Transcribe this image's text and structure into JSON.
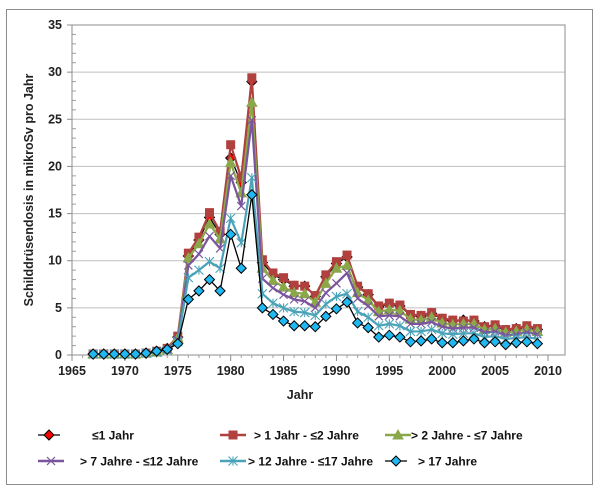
{
  "chart_data": {
    "type": "line",
    "title": "",
    "xlabel": "Jahr",
    "ylabel": "Schilddrüsendosis  in mikroSv pro Jahr",
    "xlim": [
      1965,
      2010
    ],
    "ylim": [
      0,
      35
    ],
    "x_ticks": [
      1965,
      1970,
      1975,
      1980,
      1985,
      1990,
      1995,
      2000,
      2005,
      2010
    ],
    "y_ticks": [
      0,
      5,
      10,
      15,
      20,
      25,
      30,
      35
    ],
    "grid": "horizontal",
    "legend_position": "bottom",
    "x": [
      1967,
      1968,
      1969,
      1970,
      1971,
      1972,
      1973,
      1974,
      1975,
      1976,
      1977,
      1978,
      1979,
      1980,
      1981,
      1982,
      1983,
      1984,
      1985,
      1986,
      1987,
      1988,
      1989,
      1990,
      1991,
      1992,
      1993,
      1994,
      1995,
      1996,
      1997,
      1998,
      1999,
      2000,
      2001,
      2002,
      2003,
      2004,
      2005,
      2006,
      2007,
      2008,
      2009
    ],
    "series": [
      {
        "name": "≤1 Jahr",
        "color": "#ff0000",
        "line_color": "#000000",
        "marker": "diamond",
        "values": [
          0.1,
          0.1,
          0.1,
          0.1,
          0.1,
          0.2,
          0.4,
          0.7,
          1.9,
          10.5,
          12.2,
          14.6,
          12.8,
          20.9,
          18.3,
          29.0,
          9.8,
          8.5,
          8.0,
          7.3,
          7.3,
          6.2,
          8.3,
          9.7,
          10.4,
          7.2,
          6.4,
          5.1,
          5.4,
          5.2,
          4.2,
          4.1,
          4.4,
          3.8,
          3.6,
          3.7,
          3.6,
          3.0,
          3.1,
          2.6,
          2.8,
          3.0,
          2.7
        ]
      },
      {
        "name": "> 1 Jahr - ≤2 Jahre",
        "color": "#b0413e",
        "line_color": "#b0413e",
        "marker": "square",
        "values": [
          0.1,
          0.1,
          0.1,
          0.1,
          0.1,
          0.2,
          0.4,
          0.7,
          2.0,
          10.8,
          12.5,
          15.1,
          13.1,
          22.3,
          18.8,
          29.4,
          10.1,
          8.7,
          8.2,
          7.4,
          7.3,
          6.3,
          8.5,
          9.9,
          10.6,
          7.3,
          6.5,
          5.2,
          5.5,
          5.3,
          4.3,
          4.2,
          4.5,
          3.9,
          3.7,
          3.6,
          3.7,
          3.0,
          3.2,
          2.7,
          2.8,
          3.1,
          2.8
        ]
      },
      {
        "name": "> 2 Jahre - ≤7 Jahre",
        "color": "#8aa84a",
        "line_color": "#8aa84a",
        "marker": "triangle",
        "values": [
          0.1,
          0.1,
          0.1,
          0.1,
          0.1,
          0.2,
          0.3,
          0.6,
          1.8,
          10.3,
          11.8,
          13.9,
          12.3,
          20.4,
          17.2,
          26.8,
          9.2,
          7.9,
          7.2,
          6.6,
          6.5,
          5.6,
          7.6,
          9.2,
          9.5,
          6.6,
          5.8,
          4.6,
          4.8,
          4.7,
          3.8,
          3.7,
          4.0,
          3.4,
          3.2,
          3.3,
          3.3,
          2.7,
          2.8,
          2.4,
          2.5,
          2.7,
          2.5
        ]
      },
      {
        "name": "> 7 Jahre - ≤12 Jahre",
        "color": "#7a559e",
        "line_color": "#7a559e",
        "marker": "x",
        "values": [
          0.1,
          0.1,
          0.1,
          0.1,
          0.1,
          0.2,
          0.3,
          0.6,
          1.6,
          9.5,
          10.7,
          12.6,
          11.3,
          19.0,
          15.8,
          24.9,
          8.1,
          7.1,
          6.4,
          5.9,
          5.7,
          5.0,
          6.6,
          7.6,
          8.7,
          6.0,
          5.2,
          4.1,
          4.2,
          4.1,
          3.3,
          3.3,
          3.5,
          3.0,
          2.8,
          2.9,
          2.9,
          2.4,
          2.5,
          2.1,
          2.2,
          2.4,
          2.2
        ]
      },
      {
        "name": "> 12 Jahre - ≤17 Jahre",
        "color": "#4aa3b8",
        "line_color": "#4aa3b8",
        "marker": "asterisk",
        "values": [
          0.1,
          0.1,
          0.1,
          0.1,
          0.1,
          0.2,
          0.3,
          0.5,
          1.4,
          8.2,
          9.0,
          9.9,
          9.2,
          14.5,
          11.9,
          18.8,
          6.5,
          5.5,
          5.0,
          4.6,
          4.5,
          4.2,
          5.4,
          6.2,
          6.5,
          4.6,
          4.0,
          3.1,
          3.3,
          3.1,
          2.5,
          2.5,
          2.7,
          2.3,
          2.2,
          2.3,
          2.3,
          1.9,
          2.0,
          1.7,
          1.8,
          1.9,
          1.7
        ]
      },
      {
        "name": "> 17 Jahre",
        "color": "#1fb8f0",
        "line_color": "#000000",
        "marker": "diamond",
        "values": [
          0.1,
          0.1,
          0.1,
          0.1,
          0.1,
          0.2,
          0.4,
          0.6,
          1.2,
          5.9,
          6.8,
          8.0,
          6.8,
          12.8,
          9.2,
          17.0,
          5.0,
          4.3,
          3.6,
          3.1,
          3.1,
          3.0,
          4.1,
          4.9,
          5.6,
          3.4,
          2.9,
          1.9,
          2.1,
          1.9,
          1.4,
          1.5,
          1.7,
          1.3,
          1.3,
          1.5,
          1.7,
          1.3,
          1.4,
          1.1,
          1.3,
          1.4,
          1.2
        ]
      }
    ]
  }
}
